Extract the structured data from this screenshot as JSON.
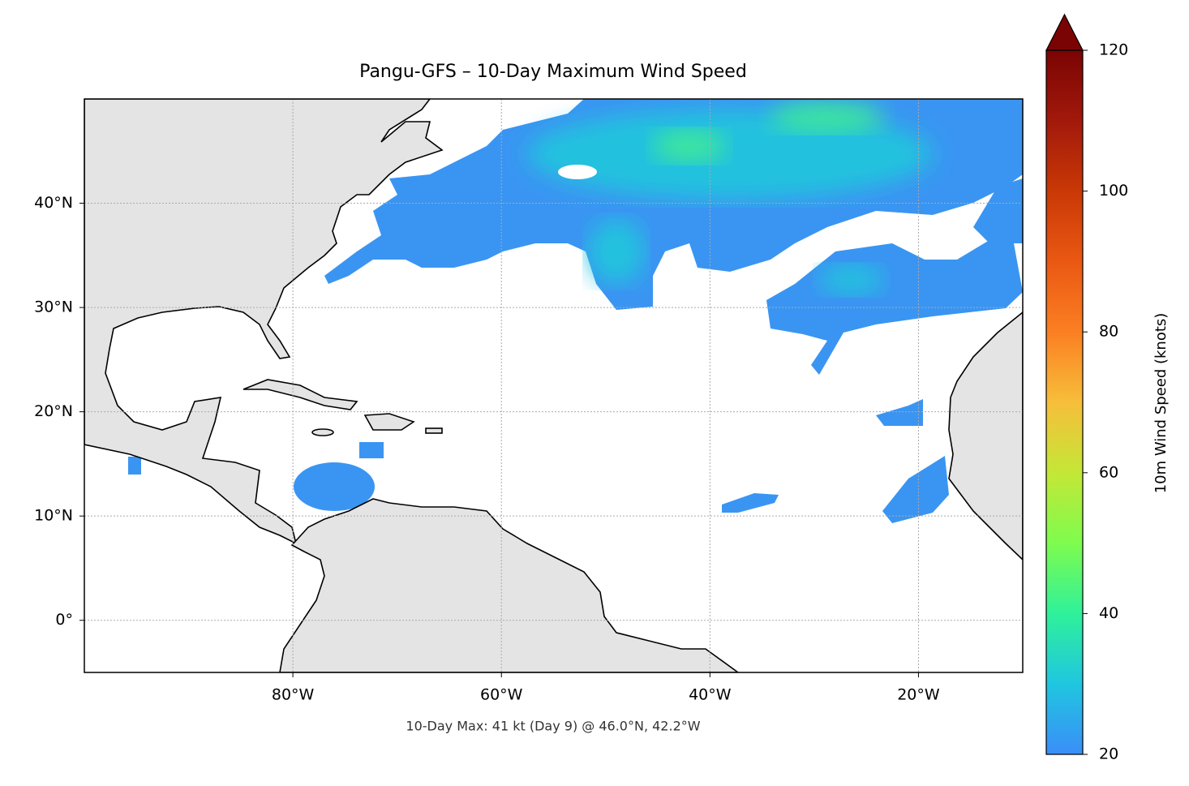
{
  "chart_data": {
    "type": "map",
    "title": "Pangu-GFS – 10-Day Maximum Wind Speed",
    "annotation": "10-Day Max: 41 kt (Day 9) @ 46.0°N, 42.2°W",
    "xlim": [
      -100,
      -10
    ],
    "ylim": [
      -5,
      50
    ],
    "xticks": [
      {
        "value": -80,
        "label": "80°W"
      },
      {
        "value": -60,
        "label": "60°W"
      },
      {
        "value": -40,
        "label": "40°W"
      },
      {
        "value": -20,
        "label": "20°W"
      }
    ],
    "yticks": [
      {
        "value": 0,
        "label": "0°"
      },
      {
        "value": 10,
        "label": "10°N"
      },
      {
        "value": 20,
        "label": "20°N"
      },
      {
        "value": 30,
        "label": "30°N"
      },
      {
        "value": 40,
        "label": "40°N"
      }
    ],
    "grid": true,
    "colorbar": {
      "label": "10m Wind Speed (knots)",
      "clim": [
        20,
        120
      ],
      "ticks": [
        20,
        40,
        60,
        80,
        100,
        120
      ],
      "extend": "max",
      "colormap": [
        "#3b8ef8",
        "#1fc6e0",
        "#2ff19a",
        "#7efc4e",
        "#c4e737",
        "#f7be3a",
        "#fb7f22",
        "#ea5813",
        "#c93806",
        "#a2190b",
        "#7a0403"
      ]
    }
  }
}
